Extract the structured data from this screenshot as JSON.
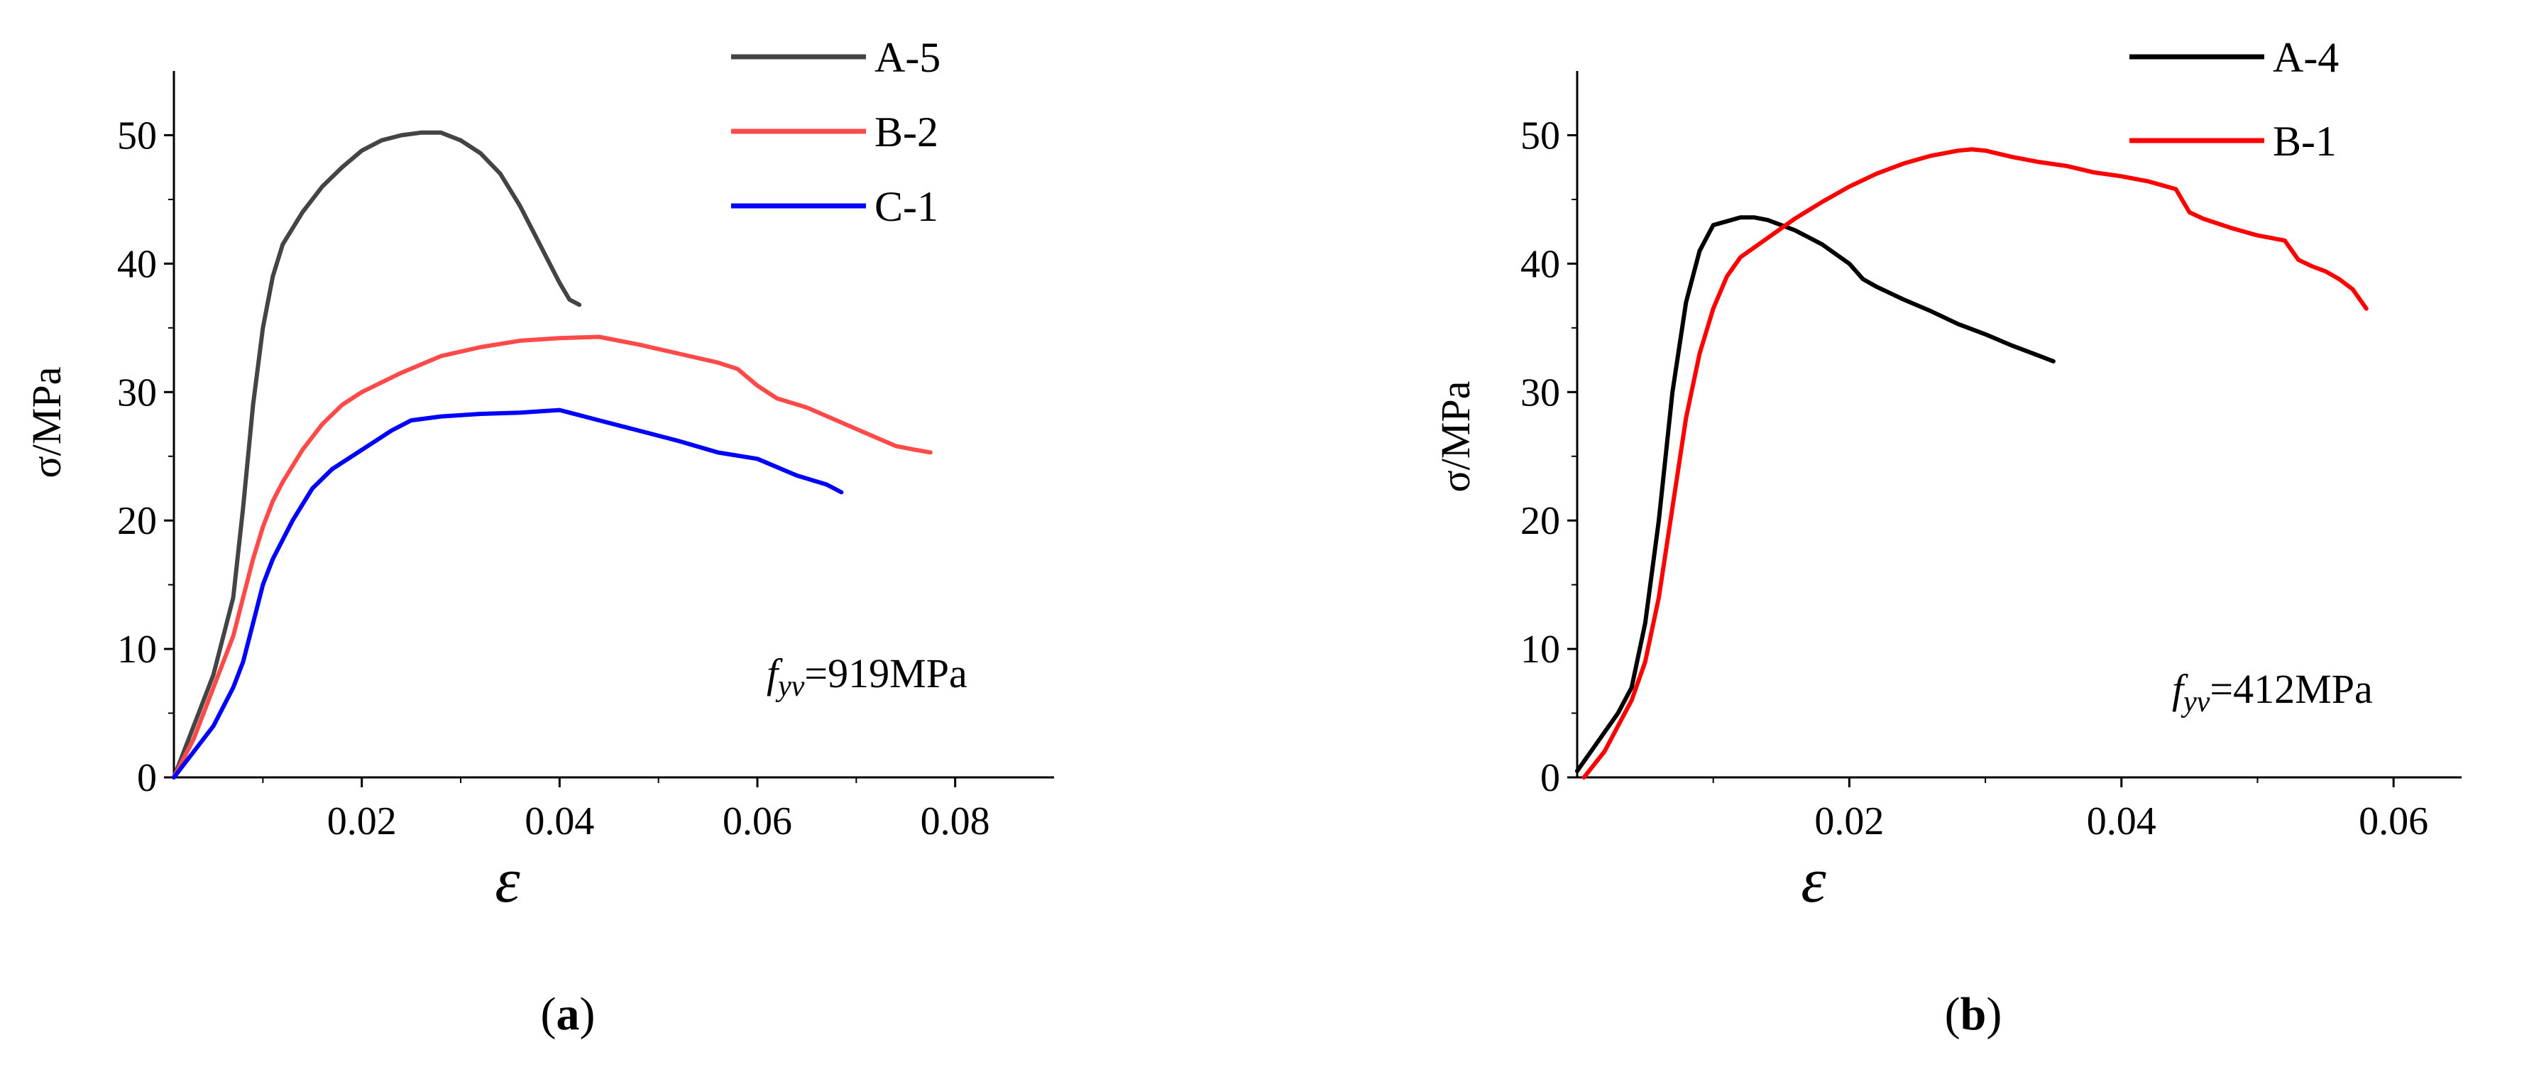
{
  "chart_data": [
    {
      "type": "line",
      "panel_label": "(a)",
      "panel_letter": "a",
      "xlabel": "ε",
      "ylabel": "σ/MPa",
      "xlim": [
        0.001,
        0.09
      ],
      "ylim": [
        0,
        55
      ],
      "xticks": [
        0.02,
        0.04,
        0.06,
        0.08
      ],
      "xtick_labels": [
        "0.02",
        "0.04",
        "0.06",
        "0.08"
      ],
      "yticks": [
        0,
        10,
        20,
        30,
        40,
        50
      ],
      "ytick_labels": [
        "0",
        "10",
        "20",
        "30",
        "40",
        "50"
      ],
      "legend_position": "top-right",
      "annotation": {
        "symbol": "f",
        "subscript": "yv",
        "value": "=919MPa"
      },
      "series": [
        {
          "name": "A-5",
          "color": "#444444",
          "x": [
            0.001,
            0.003,
            0.005,
            0.007,
            0.008,
            0.009,
            0.01,
            0.011,
            0.012,
            0.014,
            0.016,
            0.018,
            0.02,
            0.022,
            0.024,
            0.026,
            0.028,
            0.03,
            0.032,
            0.034,
            0.036,
            0.038,
            0.039,
            0.04,
            0.041,
            0.042
          ],
          "y": [
            0,
            4,
            8,
            14,
            21,
            29,
            35,
            39,
            41.5,
            44,
            46,
            47.5,
            48.8,
            49.6,
            50.0,
            50.2,
            50.2,
            49.6,
            48.6,
            47.0,
            44.5,
            41.5,
            40.0,
            38.5,
            37.2,
            36.8
          ]
        },
        {
          "name": "B-2",
          "color": "#ff4a4a",
          "x": [
            0.001,
            0.003,
            0.005,
            0.007,
            0.008,
            0.009,
            0.01,
            0.011,
            0.012,
            0.014,
            0.016,
            0.018,
            0.02,
            0.024,
            0.028,
            0.032,
            0.036,
            0.04,
            0.044,
            0.048,
            0.052,
            0.056,
            0.058,
            0.06,
            0.062,
            0.065,
            0.068,
            0.071,
            0.074,
            0.076,
            0.0775
          ],
          "y": [
            0,
            3,
            7,
            11,
            14,
            17,
            19.5,
            21.5,
            23,
            25.5,
            27.5,
            29,
            30,
            31.5,
            32.8,
            33.5,
            34.0,
            34.2,
            34.3,
            33.7,
            33.0,
            32.3,
            31.8,
            30.5,
            29.5,
            28.8,
            27.8,
            26.8,
            25.8,
            25.5,
            25.3
          ]
        },
        {
          "name": "C-1",
          "color": "#0000ff",
          "x": [
            0.001,
            0.003,
            0.005,
            0.007,
            0.008,
            0.009,
            0.01,
            0.011,
            0.012,
            0.013,
            0.015,
            0.017,
            0.019,
            0.021,
            0.023,
            0.025,
            0.028,
            0.032,
            0.036,
            0.04,
            0.042,
            0.044,
            0.048,
            0.052,
            0.056,
            0.06,
            0.064,
            0.067,
            0.0685
          ],
          "y": [
            0,
            2,
            4,
            7,
            9,
            12,
            15,
            17,
            18.5,
            20,
            22.5,
            24,
            25,
            26,
            27,
            27.8,
            28.1,
            28.3,
            28.4,
            28.6,
            28.2,
            27.8,
            27.0,
            26.2,
            25.3,
            24.8,
            23.5,
            22.8,
            22.2
          ]
        }
      ]
    },
    {
      "type": "line",
      "panel_label": "(b)",
      "panel_letter": "b",
      "xlabel": "ε",
      "ylabel": "σ/MPa",
      "xlim": [
        0.0,
        0.065
      ],
      "ylim": [
        0,
        55
      ],
      "xticks": [
        0.02,
        0.04,
        0.06
      ],
      "xtick_labels": [
        "0.02",
        "0.04",
        "0.06"
      ],
      "yticks": [
        0,
        10,
        20,
        30,
        40,
        50
      ],
      "ytick_labels": [
        "0",
        "10",
        "20",
        "30",
        "40",
        "50"
      ],
      "legend_position": "top-right",
      "annotation": {
        "symbol": "f",
        "subscript": "yv",
        "value": "=412MPa"
      },
      "series": [
        {
          "name": "A-4",
          "color": "#000000",
          "x": [
            0.0,
            0.001,
            0.002,
            0.003,
            0.004,
            0.005,
            0.006,
            0.007,
            0.008,
            0.009,
            0.01,
            0.011,
            0.012,
            0.013,
            0.014,
            0.015,
            0.016,
            0.018,
            0.02,
            0.021,
            0.022,
            0.024,
            0.026,
            0.028,
            0.03,
            0.032,
            0.034,
            0.035
          ],
          "y": [
            0.5,
            2,
            3.5,
            5,
            7,
            12,
            20,
            30,
            37,
            41,
            43,
            43.3,
            43.6,
            43.6,
            43.4,
            43.0,
            42.6,
            41.5,
            40.0,
            38.8,
            38.2,
            37.2,
            36.3,
            35.3,
            34.5,
            33.6,
            32.8,
            32.4
          ]
        },
        {
          "name": "B-1",
          "color": "#ff0000",
          "x": [
            0.0005,
            0.002,
            0.003,
            0.004,
            0.005,
            0.006,
            0.007,
            0.008,
            0.009,
            0.01,
            0.011,
            0.012,
            0.014,
            0.016,
            0.018,
            0.02,
            0.022,
            0.024,
            0.026,
            0.028,
            0.029,
            0.03,
            0.032,
            0.034,
            0.036,
            0.038,
            0.04,
            0.042,
            0.044,
            0.045,
            0.046,
            0.048,
            0.05,
            0.052,
            0.053,
            0.054,
            0.055,
            0.056,
            0.057,
            0.058
          ],
          "y": [
            0,
            2,
            4,
            6,
            9,
            14,
            21,
            28,
            33,
            36.5,
            39,
            40.5,
            42,
            43.5,
            44.8,
            46.0,
            47.0,
            47.8,
            48.4,
            48.8,
            48.9,
            48.8,
            48.3,
            47.9,
            47.6,
            47.1,
            46.8,
            46.4,
            45.8,
            44.0,
            43.5,
            42.8,
            42.2,
            41.8,
            40.3,
            39.8,
            39.4,
            38.8,
            38.0,
            36.5
          ]
        }
      ]
    }
  ]
}
